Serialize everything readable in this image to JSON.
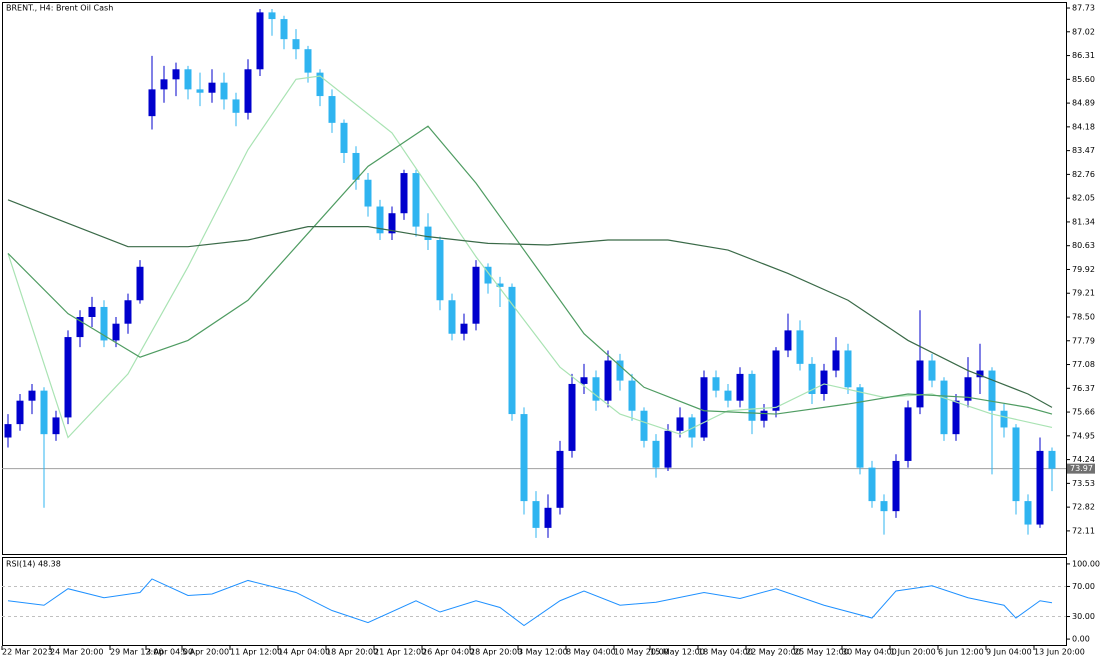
{
  "chart_data": {
    "type": "candlestick",
    "title": "BRENT., H4:  Brent Oil Cash",
    "up_color": "#0000cd",
    "down_color": "#2fb4f0",
    "ylim": [
      71.39,
      87.91
    ],
    "yticks": [
      87.73,
      87.02,
      86.31,
      {
        "value": 85.6,
        "label": "85.60"
      },
      84.89,
      84.18,
      83.47,
      82.76,
      82.05,
      81.34,
      80.63,
      79.92,
      79.21,
      {
        "value": 78.5,
        "label": "78.50"
      },
      77.79,
      77.08,
      76.37,
      75.66,
      74.95,
      74.24,
      73.53,
      72.82,
      72.11
    ],
    "last_price": 73.97,
    "xticks": [
      {
        "value": 0,
        "label": "22 Mar 2023"
      },
      {
        "value": 4,
        "label": "24 Mar 20:00"
      },
      {
        "value": 9,
        "label": "29 Mar 12:00"
      },
      {
        "value": 12,
        "label": "3 Apr 04:00"
      },
      {
        "value": 15,
        "label": "5 Apr 20:00"
      },
      {
        "value": 19,
        "label": "11 Apr 12:00"
      },
      {
        "value": 23,
        "label": "14 Apr 04:00"
      },
      {
        "value": 27,
        "label": "18 Apr 20:00"
      },
      {
        "value": 31,
        "label": "21 Apr 12:00"
      },
      {
        "value": 35,
        "label": "26 Apr 04:00"
      },
      {
        "value": 39,
        "label": "28 Apr 20:00"
      },
      {
        "value": 43,
        "label": "3 May 12:00"
      },
      {
        "value": 47,
        "label": "8 May 04:00"
      },
      {
        "value": 51,
        "label": "10 May 20:00"
      },
      {
        "value": 54,
        "label": "15 May 12:00"
      },
      {
        "value": 58,
        "label": "18 May 04:00"
      },
      {
        "value": 62,
        "label": "22 May 20:00"
      },
      {
        "value": 66,
        "label": "25 May 12:00"
      },
      {
        "value": 70,
        "label": "30 May 04:00"
      },
      {
        "value": 74,
        "label": "1 Jun 20:00"
      },
      {
        "value": 78,
        "label": "6 Jun 12:00"
      },
      {
        "value": 82,
        "label": "9 Jun 04:00"
      },
      {
        "value": 86,
        "label": "13 Jun 20:00"
      }
    ],
    "candles": [
      [
        74.9,
        75.6,
        74.6,
        75.3
      ],
      [
        75.3,
        76.2,
        75.1,
        76.0
      ],
      [
        76.0,
        76.5,
        75.6,
        76.3
      ],
      [
        76.3,
        76.4,
        72.8,
        75.0
      ],
      [
        75.0,
        75.7,
        74.8,
        75.5
      ],
      [
        75.5,
        78.1,
        75.3,
        77.9
      ],
      [
        77.9,
        78.7,
        77.6,
        78.5
      ],
      [
        78.5,
        79.1,
        78.2,
        78.8
      ],
      [
        78.8,
        79.0,
        77.6,
        77.8
      ],
      [
        77.8,
        78.5,
        77.6,
        78.3
      ],
      [
        78.3,
        79.2,
        78.0,
        79.0
      ],
      [
        79.0,
        80.2,
        78.9,
        80.0
      ],
      [
        84.5,
        86.3,
        84.1,
        85.3
      ],
      [
        85.3,
        86.0,
        84.9,
        85.6
      ],
      [
        85.6,
        86.1,
        85.1,
        85.9
      ],
      [
        85.9,
        86.0,
        85.0,
        85.3
      ],
      [
        85.3,
        85.8,
        84.8,
        85.2
      ],
      [
        85.2,
        85.9,
        84.9,
        85.5
      ],
      [
        85.5,
        85.8,
        84.7,
        85.0
      ],
      [
        85.0,
        85.2,
        84.2,
        84.6
      ],
      [
        84.6,
        86.2,
        84.4,
        85.9
      ],
      [
        85.9,
        87.7,
        85.7,
        87.6
      ],
      [
        87.6,
        87.7,
        86.9,
        87.4
      ],
      [
        87.4,
        87.5,
        86.5,
        86.8
      ],
      [
        86.8,
        87.1,
        86.2,
        86.5
      ],
      [
        86.5,
        86.6,
        85.5,
        85.8
      ],
      [
        85.8,
        85.9,
        84.8,
        85.1
      ],
      [
        85.1,
        85.3,
        84.0,
        84.3
      ],
      [
        84.3,
        84.4,
        83.1,
        83.4
      ],
      [
        83.4,
        83.6,
        82.3,
        82.6
      ],
      [
        82.6,
        82.8,
        81.5,
        81.8
      ],
      [
        81.8,
        82.0,
        80.8,
        81.0
      ],
      [
        81.0,
        81.8,
        80.8,
        81.6
      ],
      [
        81.6,
        82.9,
        81.4,
        82.8
      ],
      [
        82.8,
        82.9,
        80.9,
        81.2
      ],
      [
        81.2,
        81.6,
        80.5,
        80.8
      ],
      [
        80.8,
        80.9,
        78.7,
        79.0
      ],
      [
        79.0,
        79.2,
        77.8,
        78.0
      ],
      [
        78.0,
        78.6,
        77.8,
        78.3
      ],
      [
        78.3,
        80.2,
        78.1,
        80.0
      ],
      [
        80.0,
        80.1,
        79.2,
        79.5
      ],
      [
        79.5,
        79.7,
        78.8,
        79.4
      ],
      [
        79.4,
        79.5,
        75.4,
        75.6
      ],
      [
        75.6,
        75.8,
        72.6,
        73.0
      ],
      [
        73.0,
        73.3,
        71.9,
        72.2
      ],
      [
        72.2,
        73.2,
        71.9,
        72.8
      ],
      [
        72.8,
        74.8,
        72.6,
        74.5
      ],
      [
        74.5,
        76.8,
        74.3,
        76.5
      ],
      [
        76.5,
        77.1,
        76.2,
        76.7
      ],
      [
        76.7,
        76.9,
        75.7,
        76.0
      ],
      [
        76.0,
        77.5,
        75.8,
        77.2
      ],
      [
        77.2,
        77.4,
        76.3,
        76.6
      ],
      [
        76.6,
        76.8,
        75.4,
        75.7
      ],
      [
        75.7,
        75.8,
        74.6,
        74.8
      ],
      [
        74.8,
        75.0,
        73.7,
        74.0
      ],
      [
        74.0,
        75.3,
        73.9,
        75.1
      ],
      [
        75.1,
        75.8,
        74.9,
        75.5
      ],
      [
        75.5,
        75.6,
        74.6,
        74.9
      ],
      [
        74.9,
        76.9,
        74.8,
        76.7
      ],
      [
        76.7,
        76.9,
        76.1,
        76.3
      ],
      [
        76.3,
        76.5,
        75.8,
        76.0
      ],
      [
        76.0,
        77.0,
        75.8,
        76.8
      ],
      [
        76.8,
        76.9,
        75.0,
        75.4
      ],
      [
        75.4,
        75.9,
        75.2,
        75.7
      ],
      [
        75.7,
        77.6,
        75.5,
        77.5
      ],
      [
        77.5,
        78.6,
        77.3,
        78.1
      ],
      [
        78.1,
        78.4,
        76.9,
        77.1
      ],
      [
        77.1,
        77.3,
        75.9,
        76.2
      ],
      [
        76.2,
        77.1,
        76.0,
        76.9
      ],
      [
        76.9,
        77.9,
        76.7,
        77.5
      ],
      [
        77.5,
        77.7,
        76.2,
        76.4
      ],
      [
        76.4,
        76.5,
        73.8,
        74.0
      ],
      [
        74.0,
        74.2,
        72.8,
        73.0
      ],
      [
        73.0,
        73.2,
        72.0,
        72.7
      ],
      [
        72.7,
        74.4,
        72.5,
        74.2
      ],
      [
        74.2,
        76.0,
        74.0,
        75.8
      ],
      [
        75.8,
        78.7,
        75.6,
        77.2
      ],
      [
        77.2,
        77.4,
        76.4,
        76.6
      ],
      [
        76.6,
        76.7,
        74.8,
        75.0
      ],
      [
        75.0,
        76.2,
        74.8,
        76.0
      ],
      [
        76.0,
        77.3,
        75.8,
        76.7
      ],
      [
        76.7,
        77.7,
        76.2,
        76.9
      ],
      [
        76.9,
        77.0,
        73.8,
        75.7
      ],
      [
        75.7,
        75.9,
        74.9,
        75.2
      ],
      [
        75.2,
        75.3,
        72.6,
        73.0
      ],
      [
        73.0,
        73.2,
        72.0,
        72.3
      ],
      [
        72.3,
        74.9,
        72.2,
        74.5
      ],
      [
        74.5,
        74.6,
        73.3,
        73.97
      ]
    ],
    "moving_averages": [
      {
        "color": "#a9e3b3",
        "x": [
          0,
          5,
          10,
          15,
          20,
          24,
          26,
          32,
          39,
          46,
          51,
          56,
          60,
          64,
          68,
          73,
          77,
          82,
          87
        ],
        "values": [
          80.4,
          74.9,
          76.8,
          80.0,
          83.5,
          85.6,
          85.7,
          84.0,
          80.3,
          77.0,
          75.6,
          75.0,
          75.7,
          75.8,
          76.5,
          76.1,
          76.2,
          75.6,
          75.2
        ]
      },
      {
        "color": "#4f9c62",
        "x": [
          0,
          5,
          11,
          15,
          20,
          25,
          30,
          35,
          39,
          44,
          48,
          53,
          58,
          64,
          70,
          75,
          80,
          85,
          87
        ],
        "values": [
          80.4,
          78.6,
          77.3,
          77.8,
          79.0,
          81.0,
          83.0,
          84.2,
          82.5,
          80.0,
          78.0,
          76.4,
          75.7,
          75.6,
          75.9,
          76.2,
          76.1,
          75.8,
          75.6
        ]
      },
      {
        "color": "#3a6a48",
        "x": [
          0,
          5,
          10,
          15,
          20,
          25,
          30,
          35,
          40,
          45,
          50,
          55,
          60,
          65,
          70,
          75,
          80,
          85,
          87
        ],
        "values": [
          82.0,
          81.3,
          80.6,
          80.6,
          80.8,
          81.2,
          81.2,
          80.9,
          80.7,
          80.65,
          80.8,
          80.8,
          80.5,
          79.8,
          79.0,
          77.8,
          76.9,
          76.2,
          75.8
        ]
      }
    ],
    "rsi": {
      "title": "RSI(14) 48.38",
      "color": "#1e90ff",
      "ylim": [
        -9.2,
        109.2
      ],
      "yticks": [
        {
          "value": 100,
          "label": "100.00"
        },
        {
          "value": 70,
          "label": "70.00"
        },
        {
          "value": 30,
          "label": "30.00"
        },
        {
          "value": 0,
          "label": "0.00"
        }
      ],
      "levels": [
        70,
        30
      ],
      "x": [
        0,
        3,
        5,
        8,
        11,
        12,
        15,
        17,
        20,
        24,
        27,
        30,
        34,
        36,
        39,
        41,
        43,
        46,
        48,
        51,
        54,
        58,
        61,
        64,
        68,
        72,
        74,
        77,
        80,
        83,
        84,
        86,
        87
      ],
      "values": [
        51,
        45,
        67,
        55,
        62,
        80,
        58,
        60,
        78,
        62,
        38,
        22,
        51,
        36,
        51,
        42,
        18,
        51,
        64,
        45,
        49,
        62,
        54,
        67,
        45,
        28,
        64,
        71,
        55,
        45,
        28,
        51,
        48.38
      ]
    }
  }
}
